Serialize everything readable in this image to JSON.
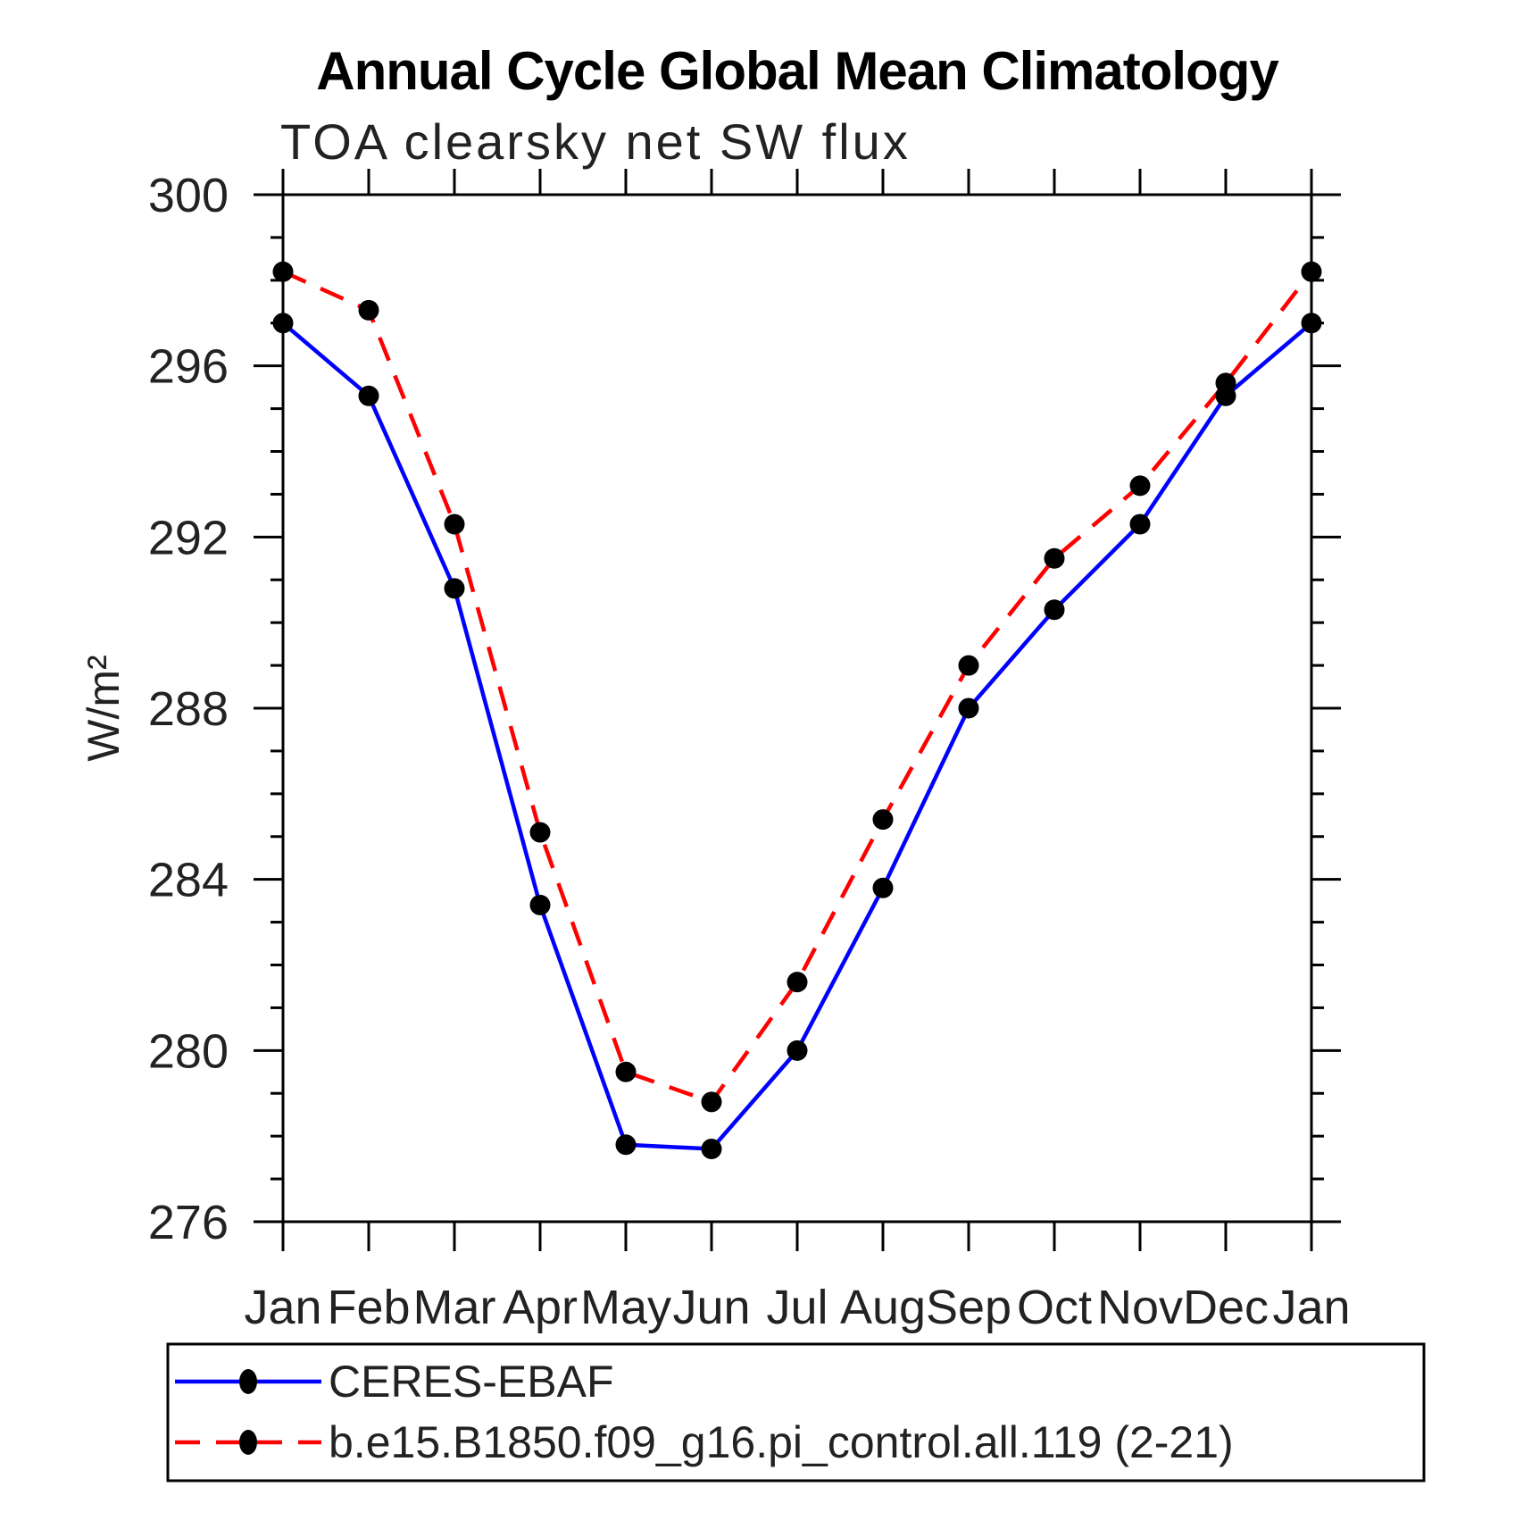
{
  "title": "Annual Cycle Global Mean Climatology",
  "subtitle": "TOA clearsky net SW flux",
  "ylabel": "W/m²",
  "chart_data": {
    "type": "line",
    "x_categories": [
      "Jan",
      "Feb",
      "Mar",
      "Apr",
      "May",
      "Jun",
      "Jul",
      "Aug",
      "Sep",
      "Oct",
      "Nov",
      "Dec",
      "Jan"
    ],
    "series": [
      {
        "name": "CERES-EBAF",
        "color": "#0000ff",
        "line_style": "solid",
        "marker": "filled-circle",
        "marker_color": "#000000",
        "values": [
          297.0,
          295.3,
          290.8,
          283.4,
          277.8,
          277.7,
          280.0,
          283.8,
          288.0,
          290.3,
          292.3,
          295.3,
          297.0
        ]
      },
      {
        "name": "b.e15.B1850.f09_g16.pi_control.all.119 (2-21)",
        "color": "#ff0000",
        "line_style": "dashed",
        "marker": "filled-circle",
        "marker_color": "#000000",
        "values": [
          298.2,
          297.3,
          292.3,
          285.1,
          279.5,
          278.8,
          281.6,
          285.4,
          289.0,
          291.5,
          293.2,
          295.6,
          298.2
        ]
      }
    ],
    "ylim": [
      276,
      300
    ],
    "y_major_tick_step": 4,
    "y_minor_tick_step": 1,
    "y_major_ticks": [
      276,
      280,
      284,
      288,
      292,
      296,
      300
    ],
    "grid": false,
    "legend_position": "bottom-left",
    "axis_color": "#000000"
  }
}
